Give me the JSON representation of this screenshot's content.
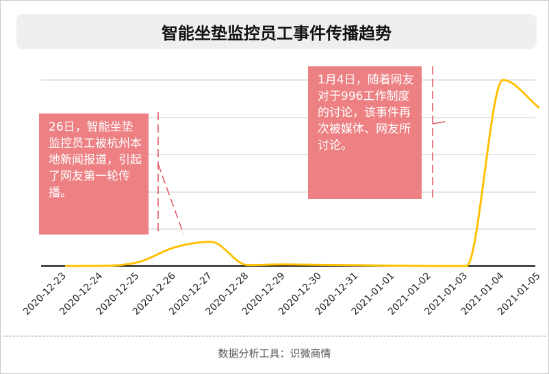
{
  "title": "智能坐垫监控员工事件传播趋势",
  "source": "数据分析工具：识微商情",
  "annotations": {
    "left": "26日，智能坐垫监控员工被杭州本地新闻报道，引起了网友第一轮传播。",
    "right": "1月4日，随着网友对于996工作制度的讨论，该事件再次被媒体、网友所讨论。"
  },
  "colors": {
    "line": "#ffc000",
    "annotation_bg": "#ec8083",
    "annotation_marker": "#e0505a",
    "grid": "#c8c8c8",
    "axis": "#111111"
  },
  "chart_data": {
    "type": "line",
    "title": "智能坐垫监控员工事件传播趋势",
    "categories": [
      "2020-12-23",
      "2020-12-24",
      "2020-12-25",
      "2020-12-26",
      "2020-12-27",
      "2020-12-28",
      "2020-12-29",
      "2020-12-30",
      "2020-12-31",
      "2021-01-01",
      "2021-01-02",
      "2021-01-03",
      "2021-01-04",
      "2021-01-05"
    ],
    "series": [
      {
        "values": [
          0,
          0.1,
          2,
          10,
          13,
          0.5,
          0.8,
          0.6,
          0.4,
          0.2,
          0,
          0,
          100,
          85
        ]
      }
    ],
    "ylim": [
      0,
      100
    ],
    "grid": true,
    "legend": "none"
  }
}
